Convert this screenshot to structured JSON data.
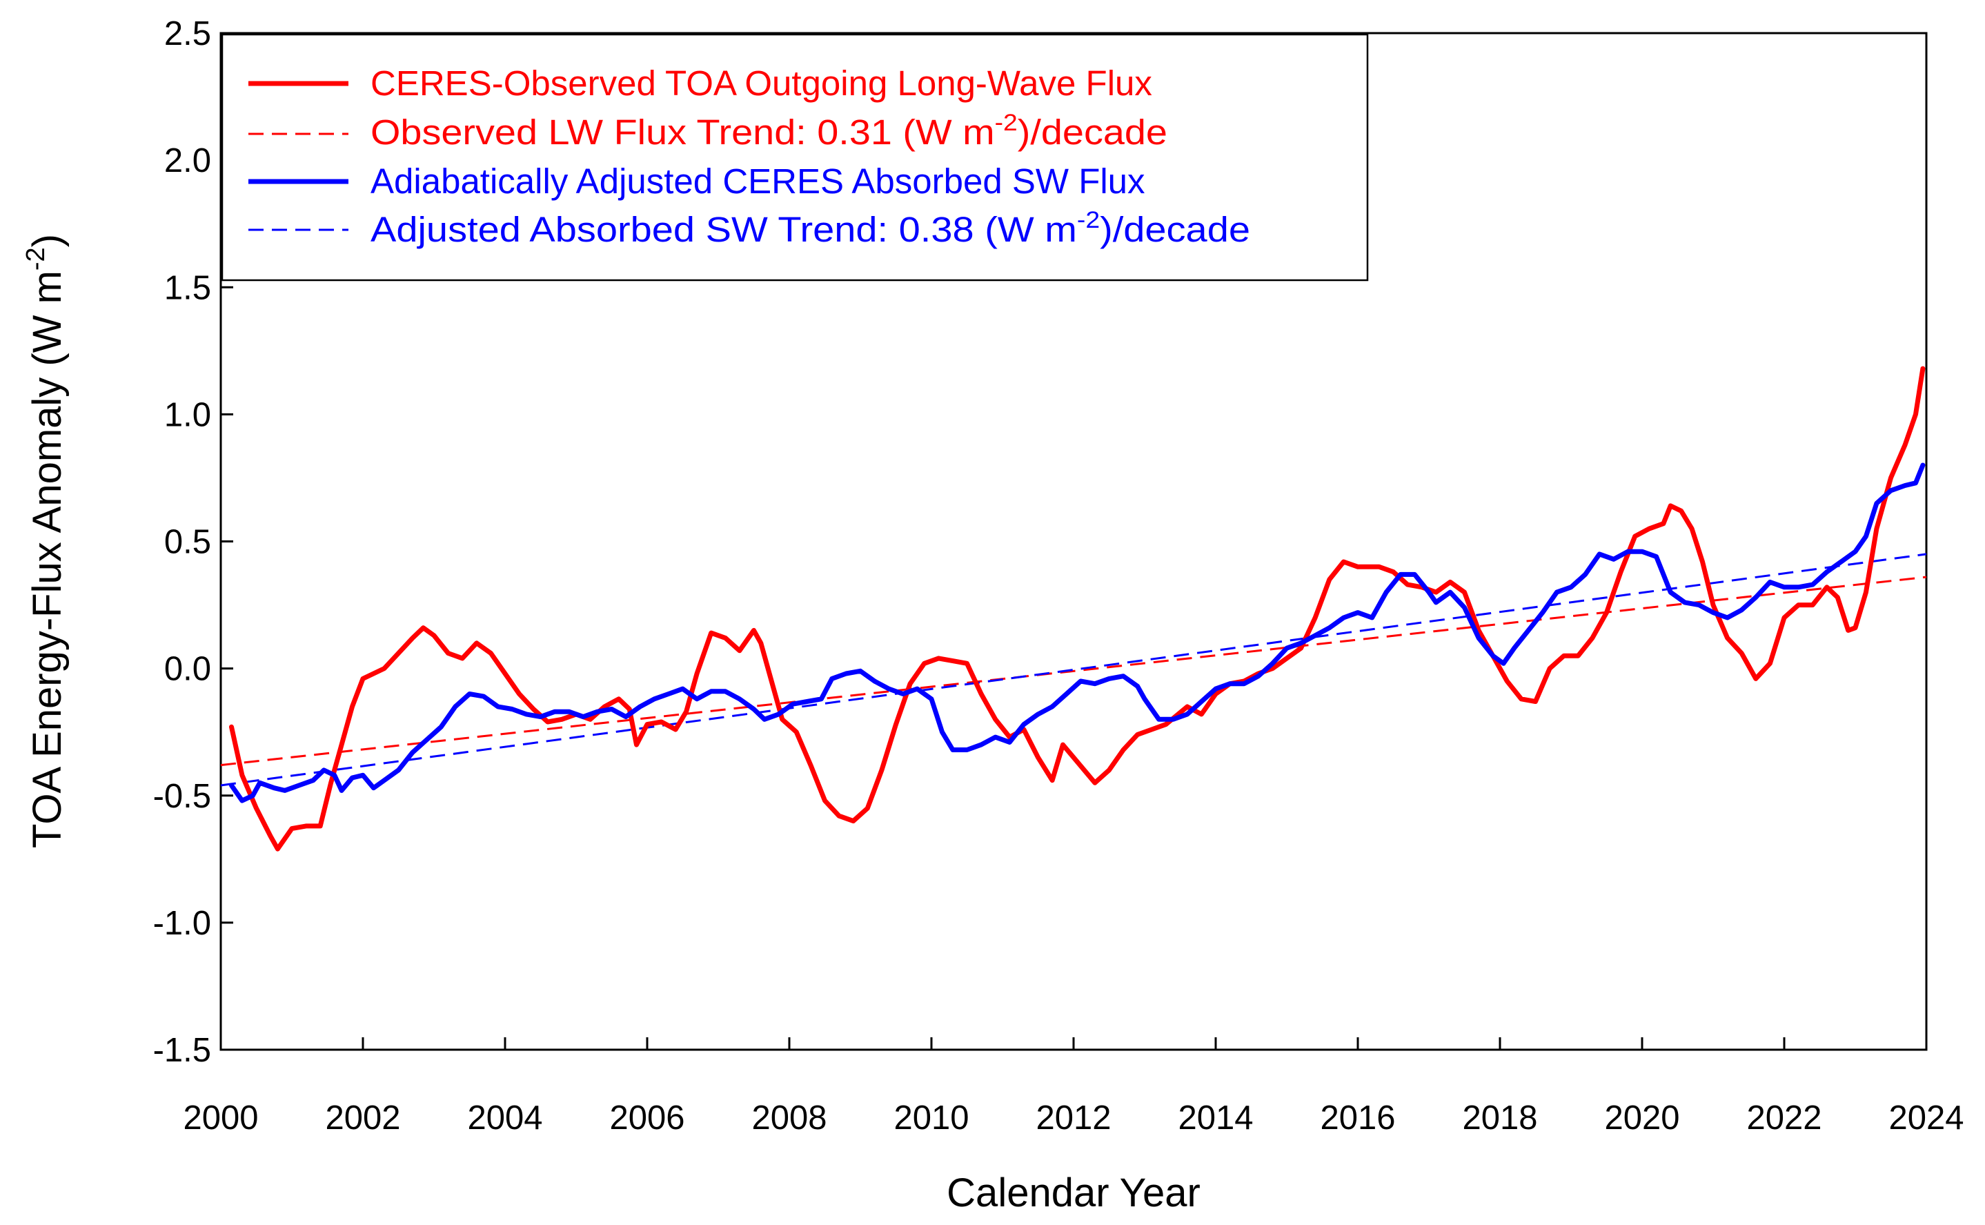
{
  "chart_data": {
    "type": "line",
    "title": "",
    "xlabel": "Calendar Year",
    "ylabel": "TOA Energy-Flux Anomaly (W m",
    "ylabel_sup": "-2",
    "ylabel_close": ")",
    "xlim": [
      2000,
      2024
    ],
    "ylim": [
      -1.5,
      2.5
    ],
    "grid": false,
    "legend_position": "top-left",
    "x_ticks": [
      "2000",
      "2002",
      "2004",
      "2006",
      "2008",
      "2010",
      "2012",
      "2014",
      "2016",
      "2018",
      "2020",
      "2022",
      "2024"
    ],
    "y_ticks": [
      "-1.5",
      "-1.0",
      "-0.5",
      "0.0",
      "0.5",
      "1.0",
      "1.5",
      "2.0",
      "2.5"
    ],
    "colors": {
      "red": "#ff0000",
      "blue": "#0000ff"
    },
    "series": [
      {
        "name": "CERES-Observed TOA Outgoing Long-Wave Flux",
        "style": "solid",
        "color": "#ff0000",
        "points": [
          [
            2000.15,
            -0.23
          ],
          [
            2000.3,
            -0.42
          ],
          [
            2000.5,
            -0.55
          ],
          [
            2000.7,
            -0.66
          ],
          [
            2000.8,
            -0.71
          ],
          [
            2001.0,
            -0.63
          ],
          [
            2001.2,
            -0.62
          ],
          [
            2001.4,
            -0.62
          ],
          [
            2001.55,
            -0.45
          ],
          [
            2001.7,
            -0.3
          ],
          [
            2001.85,
            -0.15
          ],
          [
            2002.0,
            -0.04
          ],
          [
            2002.3,
            0.0
          ],
          [
            2002.5,
            0.06
          ],
          [
            2002.7,
            0.12
          ],
          [
            2002.85,
            0.16
          ],
          [
            2003.0,
            0.13
          ],
          [
            2003.2,
            0.06
          ],
          [
            2003.4,
            0.04
          ],
          [
            2003.6,
            0.1
          ],
          [
            2003.8,
            0.06
          ],
          [
            2004.0,
            -0.02
          ],
          [
            2004.2,
            -0.1
          ],
          [
            2004.4,
            -0.16
          ],
          [
            2004.6,
            -0.21
          ],
          [
            2004.8,
            -0.2
          ],
          [
            2005.0,
            -0.18
          ],
          [
            2005.2,
            -0.2
          ],
          [
            2005.4,
            -0.15
          ],
          [
            2005.6,
            -0.12
          ],
          [
            2005.75,
            -0.16
          ],
          [
            2005.85,
            -0.3
          ],
          [
            2006.0,
            -0.22
          ],
          [
            2006.2,
            -0.21
          ],
          [
            2006.4,
            -0.24
          ],
          [
            2006.55,
            -0.17
          ],
          [
            2006.7,
            -0.02
          ],
          [
            2006.9,
            0.14
          ],
          [
            2007.1,
            0.12
          ],
          [
            2007.3,
            0.07
          ],
          [
            2007.5,
            0.15
          ],
          [
            2007.6,
            0.1
          ],
          [
            2007.8,
            -0.1
          ],
          [
            2007.9,
            -0.2
          ],
          [
            2008.1,
            -0.25
          ],
          [
            2008.3,
            -0.38
          ],
          [
            2008.5,
            -0.52
          ],
          [
            2008.7,
            -0.58
          ],
          [
            2008.9,
            -0.6
          ],
          [
            2009.1,
            -0.55
          ],
          [
            2009.3,
            -0.4
          ],
          [
            2009.5,
            -0.22
          ],
          [
            2009.7,
            -0.06
          ],
          [
            2009.9,
            0.02
          ],
          [
            2010.1,
            0.04
          ],
          [
            2010.3,
            0.03
          ],
          [
            2010.5,
            0.02
          ],
          [
            2010.7,
            -0.1
          ],
          [
            2010.9,
            -0.2
          ],
          [
            2011.1,
            -0.27
          ],
          [
            2011.3,
            -0.24
          ],
          [
            2011.5,
            -0.35
          ],
          [
            2011.7,
            -0.44
          ],
          [
            2011.85,
            -0.3
          ],
          [
            2012.0,
            -0.35
          ],
          [
            2012.3,
            -0.45
          ],
          [
            2012.5,
            -0.4
          ],
          [
            2012.7,
            -0.32
          ],
          [
            2012.9,
            -0.26
          ],
          [
            2013.1,
            -0.24
          ],
          [
            2013.3,
            -0.22
          ],
          [
            2013.6,
            -0.15
          ],
          [
            2013.8,
            -0.18
          ],
          [
            2014.0,
            -0.1
          ],
          [
            2014.2,
            -0.06
          ],
          [
            2014.4,
            -0.05
          ],
          [
            2014.6,
            -0.02
          ],
          [
            2014.8,
            0.0
          ],
          [
            2015.0,
            0.04
          ],
          [
            2015.2,
            0.08
          ],
          [
            2015.4,
            0.2
          ],
          [
            2015.6,
            0.35
          ],
          [
            2015.8,
            0.42
          ],
          [
            2016.0,
            0.4
          ],
          [
            2016.3,
            0.4
          ],
          [
            2016.5,
            0.38
          ],
          [
            2016.7,
            0.33
          ],
          [
            2016.9,
            0.32
          ],
          [
            2017.1,
            0.3
          ],
          [
            2017.3,
            0.34
          ],
          [
            2017.5,
            0.3
          ],
          [
            2017.7,
            0.15
          ],
          [
            2017.9,
            0.05
          ],
          [
            2018.1,
            -0.05
          ],
          [
            2018.3,
            -0.12
          ],
          [
            2018.5,
            -0.13
          ],
          [
            2018.7,
            0.0
          ],
          [
            2018.9,
            0.05
          ],
          [
            2019.1,
            0.05
          ],
          [
            2019.3,
            0.12
          ],
          [
            2019.5,
            0.22
          ],
          [
            2019.7,
            0.38
          ],
          [
            2019.9,
            0.52
          ],
          [
            2020.1,
            0.55
          ],
          [
            2020.3,
            0.57
          ],
          [
            2020.4,
            0.64
          ],
          [
            2020.55,
            0.62
          ],
          [
            2020.7,
            0.55
          ],
          [
            2020.85,
            0.42
          ],
          [
            2021.0,
            0.25
          ],
          [
            2021.2,
            0.12
          ],
          [
            2021.4,
            0.06
          ],
          [
            2021.6,
            -0.04
          ],
          [
            2021.8,
            0.02
          ],
          [
            2022.0,
            0.2
          ],
          [
            2022.2,
            0.25
          ],
          [
            2022.4,
            0.25
          ],
          [
            2022.6,
            0.32
          ],
          [
            2022.75,
            0.28
          ],
          [
            2022.9,
            0.15
          ],
          [
            2023.0,
            0.16
          ],
          [
            2023.15,
            0.3
          ],
          [
            2023.3,
            0.55
          ],
          [
            2023.5,
            0.75
          ],
          [
            2023.7,
            0.88
          ],
          [
            2023.85,
            1.0
          ],
          [
            2023.95,
            1.18
          ]
        ]
      },
      {
        "name": "Observed LW Flux Trend: 0.31 (W m",
        "name_sup": "-2",
        "name_tail": ")/decade",
        "style": "dashed",
        "color": "#ff0000",
        "points": [
          [
            2000.0,
            -0.38
          ],
          [
            2024.0,
            0.36
          ]
        ]
      },
      {
        "name": "Adiabatically Adjusted CERES Absorbed SW Flux",
        "style": "solid",
        "color": "#0000ff",
        "points": [
          [
            2000.15,
            -0.46
          ],
          [
            2000.3,
            -0.52
          ],
          [
            2000.45,
            -0.5
          ],
          [
            2000.55,
            -0.45
          ],
          [
            2000.75,
            -0.47
          ],
          [
            2000.9,
            -0.48
          ],
          [
            2001.1,
            -0.46
          ],
          [
            2001.3,
            -0.44
          ],
          [
            2001.45,
            -0.4
          ],
          [
            2001.6,
            -0.42
          ],
          [
            2001.7,
            -0.48
          ],
          [
            2001.85,
            -0.43
          ],
          [
            2002.0,
            -0.42
          ],
          [
            2002.15,
            -0.47
          ],
          [
            2002.3,
            -0.44
          ],
          [
            2002.5,
            -0.4
          ],
          [
            2002.7,
            -0.33
          ],
          [
            2002.9,
            -0.28
          ],
          [
            2003.1,
            -0.23
          ],
          [
            2003.3,
            -0.15
          ],
          [
            2003.5,
            -0.1
          ],
          [
            2003.7,
            -0.11
          ],
          [
            2003.9,
            -0.15
          ],
          [
            2004.1,
            -0.16
          ],
          [
            2004.3,
            -0.18
          ],
          [
            2004.5,
            -0.19
          ],
          [
            2004.7,
            -0.17
          ],
          [
            2004.9,
            -0.17
          ],
          [
            2005.1,
            -0.19
          ],
          [
            2005.3,
            -0.17
          ],
          [
            2005.5,
            -0.16
          ],
          [
            2005.7,
            -0.19
          ],
          [
            2005.9,
            -0.15
          ],
          [
            2006.1,
            -0.12
          ],
          [
            2006.3,
            -0.1
          ],
          [
            2006.5,
            -0.08
          ],
          [
            2006.7,
            -0.12
          ],
          [
            2006.9,
            -0.09
          ],
          [
            2007.1,
            -0.09
          ],
          [
            2007.3,
            -0.12
          ],
          [
            2007.5,
            -0.16
          ],
          [
            2007.65,
            -0.2
          ],
          [
            2007.85,
            -0.18
          ],
          [
            2008.05,
            -0.14
          ],
          [
            2008.25,
            -0.13
          ],
          [
            2008.45,
            -0.12
          ],
          [
            2008.6,
            -0.04
          ],
          [
            2008.8,
            -0.02
          ],
          [
            2009.0,
            -0.01
          ],
          [
            2009.2,
            -0.05
          ],
          [
            2009.4,
            -0.08
          ],
          [
            2009.6,
            -0.1
          ],
          [
            2009.8,
            -0.08
          ],
          [
            2010.0,
            -0.12
          ],
          [
            2010.15,
            -0.25
          ],
          [
            2010.3,
            -0.32
          ],
          [
            2010.5,
            -0.32
          ],
          [
            2010.7,
            -0.3
          ],
          [
            2010.9,
            -0.27
          ],
          [
            2011.1,
            -0.29
          ],
          [
            2011.3,
            -0.22
          ],
          [
            2011.5,
            -0.18
          ],
          [
            2011.7,
            -0.15
          ],
          [
            2011.9,
            -0.1
          ],
          [
            2012.1,
            -0.05
          ],
          [
            2012.3,
            -0.06
          ],
          [
            2012.5,
            -0.04
          ],
          [
            2012.7,
            -0.03
          ],
          [
            2012.9,
            -0.07
          ],
          [
            2013.0,
            -0.12
          ],
          [
            2013.2,
            -0.2
          ],
          [
            2013.4,
            -0.2
          ],
          [
            2013.6,
            -0.18
          ],
          [
            2013.8,
            -0.13
          ],
          [
            2014.0,
            -0.08
          ],
          [
            2014.2,
            -0.06
          ],
          [
            2014.4,
            -0.06
          ],
          [
            2014.6,
            -0.03
          ],
          [
            2014.8,
            0.02
          ],
          [
            2015.0,
            0.08
          ],
          [
            2015.2,
            0.1
          ],
          [
            2015.4,
            0.13
          ],
          [
            2015.6,
            0.16
          ],
          [
            2015.8,
            0.2
          ],
          [
            2016.0,
            0.22
          ],
          [
            2016.2,
            0.2
          ],
          [
            2016.4,
            0.3
          ],
          [
            2016.6,
            0.37
          ],
          [
            2016.8,
            0.37
          ],
          [
            2017.0,
            0.3
          ],
          [
            2017.1,
            0.26
          ],
          [
            2017.3,
            0.3
          ],
          [
            2017.5,
            0.24
          ],
          [
            2017.7,
            0.12
          ],
          [
            2017.9,
            0.05
          ],
          [
            2018.05,
            0.02
          ],
          [
            2018.2,
            0.08
          ],
          [
            2018.4,
            0.15
          ],
          [
            2018.6,
            0.22
          ],
          [
            2018.8,
            0.3
          ],
          [
            2019.0,
            0.32
          ],
          [
            2019.2,
            0.37
          ],
          [
            2019.4,
            0.45
          ],
          [
            2019.6,
            0.43
          ],
          [
            2019.8,
            0.46
          ],
          [
            2020.0,
            0.46
          ],
          [
            2020.2,
            0.44
          ],
          [
            2020.4,
            0.3
          ],
          [
            2020.6,
            0.26
          ],
          [
            2020.8,
            0.25
          ],
          [
            2021.0,
            0.22
          ],
          [
            2021.2,
            0.2
          ],
          [
            2021.4,
            0.23
          ],
          [
            2021.6,
            0.28
          ],
          [
            2021.8,
            0.34
          ],
          [
            2022.0,
            0.32
          ],
          [
            2022.2,
            0.32
          ],
          [
            2022.4,
            0.33
          ],
          [
            2022.6,
            0.38
          ],
          [
            2022.8,
            0.42
          ],
          [
            2023.0,
            0.46
          ],
          [
            2023.15,
            0.52
          ],
          [
            2023.3,
            0.65
          ],
          [
            2023.5,
            0.7
          ],
          [
            2023.7,
            0.72
          ],
          [
            2023.85,
            0.73
          ],
          [
            2023.95,
            0.8
          ]
        ]
      },
      {
        "name": "Adjusted Absorbed SW Trend: 0.38 (W m",
        "name_sup": "-2",
        "name_tail": ")/decade",
        "style": "dashed",
        "color": "#0000ff",
        "points": [
          [
            2000.0,
            -0.46
          ],
          [
            2024.0,
            0.45
          ]
        ]
      }
    ]
  }
}
